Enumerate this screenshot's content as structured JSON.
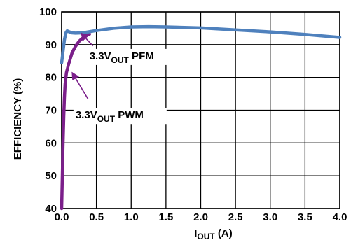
{
  "chart_data": {
    "type": "line",
    "xlabel": {
      "main": "I",
      "sub": "OUT",
      "rest": " (A)"
    },
    "ylabel": "EFFICIENCY (%)",
    "xlim": [
      0,
      4.0
    ],
    "ylim": [
      40,
      100
    ],
    "xticks": [
      "0.0",
      "0.5",
      "1.0",
      "1.5",
      "2.0",
      "2.5",
      "3.0",
      "3.5",
      "4.0"
    ],
    "yticks": [
      "40",
      "50",
      "60",
      "70",
      "80",
      "90",
      "100"
    ],
    "grid": true,
    "colors": {
      "pfm": "#4f81bd",
      "pwm": "#7b1f8a",
      "annotation": "#7b1f8a"
    },
    "series": [
      {
        "key": "pfm",
        "label": {
          "main": "3.3V",
          "sub": "OUT",
          "rest": " PFM"
        },
        "x": [
          0.0,
          0.02,
          0.04,
          0.06,
          0.08,
          0.1,
          0.15,
          0.2,
          0.3,
          0.5,
          0.75,
          1.0,
          1.25,
          1.5,
          2.0,
          2.5,
          3.0,
          3.5,
          4.0
        ],
        "y": [
          84.5,
          88.0,
          91.5,
          93.6,
          94.2,
          94.0,
          93.6,
          93.5,
          93.6,
          94.3,
          95.0,
          95.4,
          95.5,
          95.4,
          95.1,
          94.5,
          93.9,
          93.1,
          92.2
        ]
      },
      {
        "key": "pwm",
        "label": {
          "main": "3.3V",
          "sub": "OUT",
          "rest": " PWM"
        },
        "x": [
          0.0,
          0.01,
          0.02,
          0.03,
          0.04,
          0.05,
          0.07,
          0.1,
          0.15,
          0.2,
          0.25,
          0.3,
          0.35,
          0.4
        ],
        "y": [
          40.0,
          50.0,
          60.0,
          68.0,
          74.0,
          78.0,
          81.5,
          84.0,
          87.5,
          89.5,
          91.0,
          92.0,
          92.8,
          93.2
        ]
      }
    ],
    "annotations": [
      {
        "series": "pfm",
        "text_at": [
          0.4,
          85.5
        ],
        "arrow_from": [
          0.45,
          89.6
        ],
        "arrow_to": [
          0.28,
          93.5
        ]
      },
      {
        "series": "pwm",
        "text_at": [
          0.2,
          67.5
        ],
        "arrow_from": [
          0.38,
          73.4
        ],
        "arrow_to": [
          0.15,
          81.5
        ]
      }
    ]
  }
}
